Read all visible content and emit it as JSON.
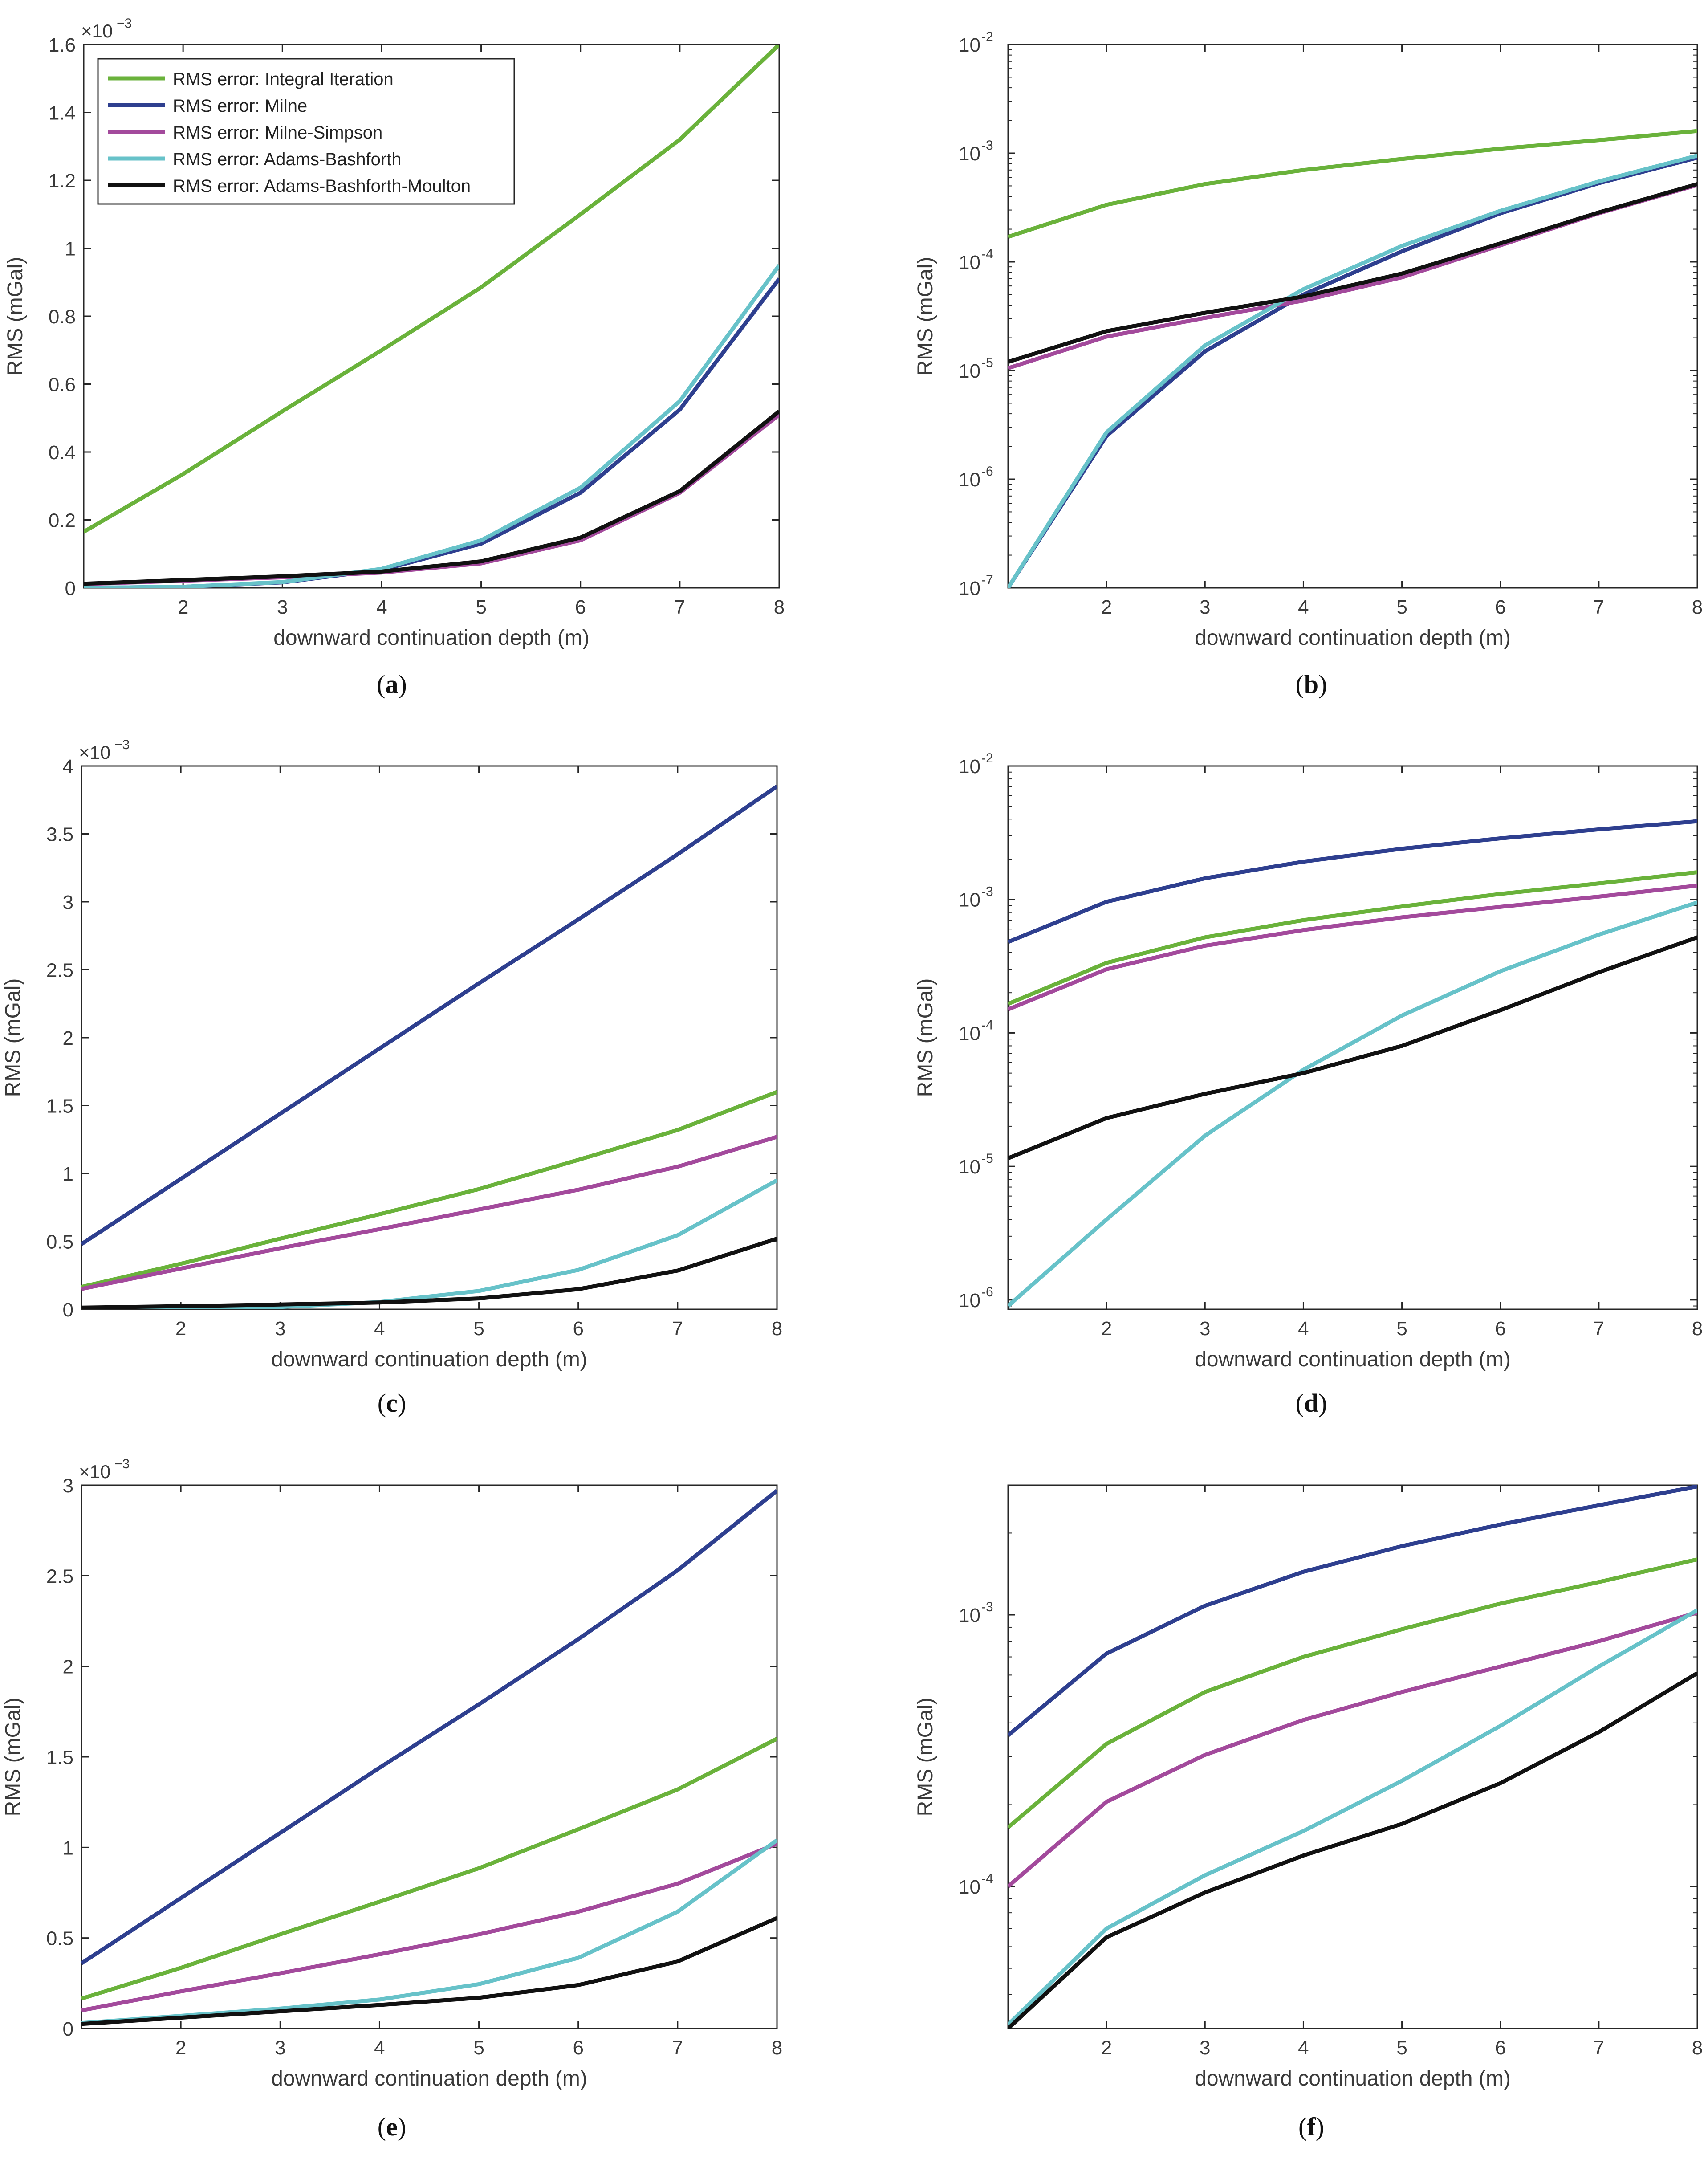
{
  "figure": {
    "legend_entries": [
      {
        "label": "RMS error: Integral Iteration",
        "color": "#6ab23b"
      },
      {
        "label": "RMS error: Milne",
        "color": "#2e3f8f"
      },
      {
        "label": "RMS error: Milne-Simpson",
        "color": "#a34a9c"
      },
      {
        "label": "RMS error: Adams-Bashforth",
        "color": "#67c2c9"
      },
      {
        "label": "RMS error: Adams-Bashforth-Moulton",
        "color": "#111111"
      }
    ]
  },
  "chart_data": [
    {
      "id": "a",
      "panel_label": "(a)",
      "type": "line",
      "yscale": "linear",
      "xlabel": "downward continuation depth (m)",
      "ylabel": "RMS (mGal)",
      "exponent_label": "×10",
      "exponent_power": "−3",
      "xlim": [
        1,
        8
      ],
      "ylim": [
        0,
        1.6
      ],
      "x_ticks": [
        2,
        3,
        4,
        5,
        6,
        7,
        8
      ],
      "y_ticks": [
        0,
        0.2,
        0.4,
        0.6,
        0.8,
        1,
        1.2,
        1.4,
        1.6
      ],
      "y_tick_labels": [
        "0",
        "0.2",
        "0.4",
        "0.6",
        "0.8",
        "1",
        "1.2",
        "1.4",
        "1.6"
      ],
      "show_legend": true,
      "x": [
        1,
        2,
        3,
        4,
        5,
        6,
        7,
        8
      ],
      "series": [
        {
          "name": "RMS error: Integral Iteration",
          "color": "#6ab23b",
          "values": [
            0.165,
            0.335,
            0.52,
            0.7,
            0.885,
            1.1,
            1.32,
            1.6
          ]
        },
        {
          "name": "RMS error: Milne",
          "color": "#2e3f8f",
          "values": [
            0.0,
            0.003,
            0.016,
            0.053,
            0.13,
            0.28,
            0.525,
            0.91
          ]
        },
        {
          "name": "RMS error: Milne-Simpson",
          "color": "#a34a9c",
          "values": [
            0.011,
            0.021,
            0.031,
            0.045,
            0.072,
            0.14,
            0.28,
            0.51
          ]
        },
        {
          "name": "RMS error: Adams-Bashforth",
          "color": "#67c2c9",
          "values": [
            0.0,
            0.003,
            0.017,
            0.056,
            0.14,
            0.295,
            0.55,
            0.95
          ]
        },
        {
          "name": "RMS error: Adams-Bashforth-Moulton",
          "color": "#111111",
          "values": [
            0.012,
            0.023,
            0.034,
            0.048,
            0.078,
            0.148,
            0.285,
            0.52
          ]
        }
      ]
    },
    {
      "id": "b",
      "panel_label": "(b)",
      "type": "line",
      "yscale": "log",
      "xlabel": "downward continuation depth (m)",
      "ylabel": "RMS (mGal)",
      "xlim": [
        1,
        8
      ],
      "ylim": [
        1e-07,
        0.01
      ],
      "x_ticks": [
        2,
        3,
        4,
        5,
        6,
        7,
        8
      ],
      "y_ticks": [
        1e-07,
        1e-06,
        1e-05,
        0.0001,
        0.001,
        0.01
      ],
      "y_tick_labels": [
        [
          "10",
          "-7"
        ],
        [
          "10",
          "-6"
        ],
        [
          "10",
          "-5"
        ],
        [
          "10",
          "-4"
        ],
        [
          "10",
          "-3"
        ],
        [
          "10",
          "-2"
        ]
      ],
      "show_legend": false,
      "x": [
        1,
        2,
        3,
        4,
        5,
        6,
        7,
        8
      ],
      "series": [
        {
          "name": "RMS error: Integral Iteration",
          "color": "#6ab23b",
          "values": [
            0.00017,
            0.000335,
            0.00052,
            0.0007,
            0.000885,
            0.0011,
            0.00132,
            0.0016
          ]
        },
        {
          "name": "RMS error: Milne",
          "color": "#2e3f8f",
          "values": [
            1e-07,
            2.5e-06,
            1.5e-05,
            5e-05,
            0.000125,
            0.00028,
            0.00053,
            0.00091
          ]
        },
        {
          "name": "RMS error: Milne-Simpson",
          "color": "#a34a9c",
          "values": [
            1.05e-05,
            2.05e-05,
            3.05e-05,
            4.4e-05,
            7.2e-05,
            0.000142,
            0.00028,
            0.00051
          ]
        },
        {
          "name": "RMS error: Adams-Bashforth",
          "color": "#67c2c9",
          "values": [
            1e-07,
            2.7e-06,
            1.7e-05,
            5.6e-05,
            0.00014,
            0.000295,
            0.00055,
            0.00095
          ]
        },
        {
          "name": "RMS error: Adams-Bashforth-Moulton",
          "color": "#111111",
          "values": [
            1.2e-05,
            2.3e-05,
            3.4e-05,
            4.8e-05,
            7.8e-05,
            0.000148,
            0.000285,
            0.00052
          ]
        }
      ]
    },
    {
      "id": "c",
      "panel_label": "(c)",
      "type": "line",
      "yscale": "linear",
      "xlabel": "downward continuation depth (m)",
      "ylabel": "RMS (mGal)",
      "exponent_label": "×10",
      "exponent_power": "−3",
      "xlim": [
        1,
        8
      ],
      "ylim": [
        0,
        4
      ],
      "x_ticks": [
        2,
        3,
        4,
        5,
        6,
        7,
        8
      ],
      "y_ticks": [
        0,
        0.5,
        1,
        1.5,
        2,
        2.5,
        3,
        3.5,
        4
      ],
      "y_tick_labels": [
        "0",
        "0.5",
        "1",
        "1.5",
        "2",
        "2.5",
        "3",
        "3.5",
        "4"
      ],
      "show_legend": false,
      "x": [
        1,
        2,
        3,
        4,
        5,
        6,
        7,
        8
      ],
      "series": [
        {
          "name": "RMS error: Milne",
          "color": "#2e3f8f",
          "values": [
            0.48,
            0.96,
            1.44,
            1.92,
            2.4,
            2.87,
            3.35,
            3.85
          ]
        },
        {
          "name": "RMS error: Integral Iteration",
          "color": "#6ab23b",
          "values": [
            0.165,
            0.335,
            0.52,
            0.7,
            0.885,
            1.1,
            1.32,
            1.6
          ]
        },
        {
          "name": "RMS error: Milne-Simpson",
          "color": "#a34a9c",
          "values": [
            0.15,
            0.3,
            0.45,
            0.59,
            0.735,
            0.88,
            1.05,
            1.27
          ]
        },
        {
          "name": "RMS error: Adams-Bashforth",
          "color": "#67c2c9",
          "values": [
            0.0,
            0.004,
            0.017,
            0.053,
            0.135,
            0.29,
            0.545,
            0.95
          ]
        },
        {
          "name": "RMS error: Adams-Bashforth-Moulton",
          "color": "#111111",
          "values": [
            0.012,
            0.023,
            0.035,
            0.05,
            0.08,
            0.148,
            0.285,
            0.52
          ]
        }
      ]
    },
    {
      "id": "d",
      "panel_label": "(d)",
      "type": "line",
      "yscale": "log",
      "xlabel": "downward continuation depth (m)",
      "ylabel": "RMS (mGal)",
      "xlim": [
        1,
        8
      ],
      "ylim": [
        8.5e-07,
        0.01
      ],
      "x_ticks": [
        2,
        3,
        4,
        5,
        6,
        7,
        8
      ],
      "y_ticks": [
        1e-06,
        1e-05,
        0.0001,
        0.001,
        0.01
      ],
      "y_tick_labels": [
        [
          "10",
          "-6"
        ],
        [
          "10",
          "-5"
        ],
        [
          "10",
          "-4"
        ],
        [
          "10",
          "-3"
        ],
        [
          "10",
          "-2"
        ]
      ],
      "show_legend": false,
      "x": [
        1,
        2,
        3,
        4,
        5,
        6,
        7,
        8
      ],
      "series": [
        {
          "name": "RMS error: Milne",
          "color": "#2e3f8f",
          "values": [
            0.00048,
            0.00096,
            0.00144,
            0.00192,
            0.0024,
            0.00287,
            0.00335,
            0.00385
          ]
        },
        {
          "name": "RMS error: Integral Iteration",
          "color": "#6ab23b",
          "values": [
            0.000165,
            0.000335,
            0.00052,
            0.0007,
            0.000885,
            0.0011,
            0.00132,
            0.0016
          ]
        },
        {
          "name": "RMS error: Milne-Simpson",
          "color": "#a34a9c",
          "values": [
            0.00015,
            0.0003,
            0.00045,
            0.00059,
            0.000735,
            0.00088,
            0.00105,
            0.00127
          ]
        },
        {
          "name": "RMS error: Adams-Bashforth",
          "color": "#67c2c9",
          "values": [
            9e-07,
            4e-06,
            1.7e-05,
            5.3e-05,
            0.000135,
            0.00029,
            0.000545,
            0.00095
          ]
        },
        {
          "name": "RMS error: Adams-Bashforth-Moulton",
          "color": "#111111",
          "values": [
            1.15e-05,
            2.3e-05,
            3.5e-05,
            5e-05,
            8e-05,
            0.000148,
            0.000285,
            0.00052
          ]
        }
      ]
    },
    {
      "id": "e",
      "panel_label": "(e)",
      "type": "line",
      "yscale": "linear",
      "xlabel": "downward continuation depth (m)",
      "ylabel": "RMS (mGal)",
      "exponent_label": "×10",
      "exponent_power": "−3",
      "xlim": [
        1,
        8
      ],
      "ylim": [
        0,
        3
      ],
      "x_ticks": [
        2,
        3,
        4,
        5,
        6,
        7,
        8
      ],
      "y_ticks": [
        0,
        0.5,
        1,
        1.5,
        2,
        2.5,
        3
      ],
      "y_tick_labels": [
        "0",
        "0.5",
        "1",
        "1.5",
        "2",
        "2.5",
        "3"
      ],
      "show_legend": false,
      "x": [
        1,
        2,
        3,
        4,
        5,
        6,
        7,
        8
      ],
      "series": [
        {
          "name": "RMS error: Milne",
          "color": "#2e3f8f",
          "values": [
            0.36,
            0.72,
            1.08,
            1.44,
            1.79,
            2.15,
            2.53,
            2.97
          ]
        },
        {
          "name": "RMS error: Integral Iteration",
          "color": "#6ab23b",
          "values": [
            0.165,
            0.335,
            0.52,
            0.7,
            0.885,
            1.1,
            1.32,
            1.6
          ]
        },
        {
          "name": "RMS error: Milne-Simpson",
          "color": "#a34a9c",
          "values": [
            0.1,
            0.205,
            0.305,
            0.41,
            0.52,
            0.645,
            0.8,
            1.02
          ]
        },
        {
          "name": "RMS error: Adams-Bashforth",
          "color": "#67c2c9",
          "values": [
            0.03,
            0.07,
            0.11,
            0.16,
            0.245,
            0.39,
            0.645,
            1.04
          ]
        },
        {
          "name": "RMS error: Adams-Bashforth-Moulton",
          "color": "#111111",
          "values": [
            0.025,
            0.06,
            0.095,
            0.13,
            0.17,
            0.24,
            0.37,
            0.61
          ]
        }
      ]
    },
    {
      "id": "f",
      "panel_label": "(f)",
      "type": "line",
      "yscale": "log",
      "xlabel": "downward continuation depth (m)",
      "ylabel": "RMS (mGal)",
      "xlim": [
        1,
        8
      ],
      "ylim": [
        3e-05,
        0.003
      ],
      "x_ticks": [
        2,
        3,
        4,
        5,
        6,
        7,
        8
      ],
      "y_ticks": [
        0.0001,
        0.001
      ],
      "y_tick_labels": [
        [
          "10",
          "-4"
        ],
        [
          "10",
          "-3"
        ]
      ],
      "show_legend": false,
      "x": [
        1,
        2,
        3,
        4,
        5,
        6,
        7,
        8
      ],
      "series": [
        {
          "name": "RMS error: Milne",
          "color": "#2e3f8f",
          "values": [
            0.00036,
            0.00072,
            0.00108,
            0.00144,
            0.00179,
            0.00215,
            0.00253,
            0.00297
          ]
        },
        {
          "name": "RMS error: Integral Iteration",
          "color": "#6ab23b",
          "values": [
            0.000165,
            0.000335,
            0.00052,
            0.0007,
            0.000885,
            0.0011,
            0.00132,
            0.0016
          ]
        },
        {
          "name": "RMS error: Milne-Simpson",
          "color": "#a34a9c",
          "values": [
            0.0001,
            0.000205,
            0.000305,
            0.00041,
            0.00052,
            0.000645,
            0.0008,
            0.00102
          ]
        },
        {
          "name": "RMS error: Adams-Bashforth",
          "color": "#67c2c9",
          "values": [
            3.1e-05,
            7e-05,
            0.00011,
            0.00016,
            0.000245,
            0.00039,
            0.000645,
            0.00104
          ]
        },
        {
          "name": "RMS error: Adams-Bashforth-Moulton",
          "color": "#111111",
          "values": [
            3e-05,
            6.5e-05,
            9.5e-05,
            0.00013,
            0.00017,
            0.00024,
            0.00037,
            0.00061
          ]
        }
      ]
    }
  ]
}
